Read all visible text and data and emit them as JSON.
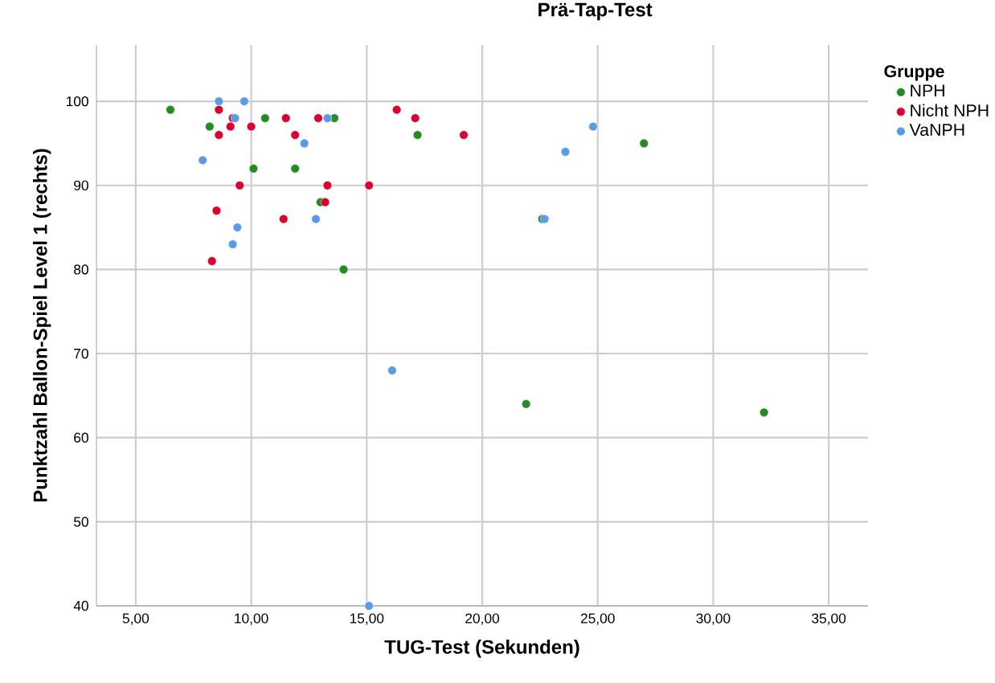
{
  "chart_data": {
    "type": "scatter",
    "title": "Prä-Tap-Test",
    "xlabel": "TUG-Test (Sekunden)",
    "ylabel": "Punktzahl Ballon-Spiel Level 1 (rechts)",
    "legend_title": "Gruppe",
    "xlim": [
      3.3,
      36.7
    ],
    "ylim": [
      40,
      106.7
    ],
    "xticks": [
      {
        "value": 5,
        "label": "5,00"
      },
      {
        "value": 10,
        "label": "10,00"
      },
      {
        "value": 15,
        "label": "15,00"
      },
      {
        "value": 20,
        "label": "20,00"
      },
      {
        "value": 25,
        "label": "25,00"
      },
      {
        "value": 30,
        "label": "30,00"
      },
      {
        "value": 35,
        "label": "35,00"
      }
    ],
    "yticks": [
      40,
      50,
      60,
      70,
      80,
      90,
      100
    ],
    "grid": true,
    "legend": "top right",
    "marker": "circle",
    "series": [
      {
        "name": "NPH",
        "color": "#228b22",
        "x": [
          6.5,
          8.2,
          10.1,
          10.6,
          11.9,
          13.0,
          13.6,
          14.0,
          17.2,
          21.9,
          22.6,
          27.0,
          32.2
        ],
        "values": [
          99,
          97,
          92,
          98,
          92,
          88,
          98,
          80,
          96,
          64,
          86,
          95,
          63
        ]
      },
      {
        "name": "Nicht NPH",
        "color": "#d7002f",
        "x": [
          8.6,
          9.2,
          11.5,
          12.9,
          9.1,
          10.0,
          8.6,
          11.9,
          16.3,
          17.1,
          19.2,
          9.5,
          13.3,
          15.1,
          13.2,
          8.5,
          11.4,
          8.3
        ],
        "values": [
          99,
          98,
          98,
          98,
          97,
          97,
          96,
          96,
          99,
          98,
          96,
          90,
          90,
          90,
          88,
          87,
          86,
          81
        ]
      },
      {
        "name": "VaNPH",
        "color": "#5b9be6",
        "x": [
          8.6,
          9.7,
          9.3,
          13.3,
          12.3,
          7.9,
          12.8,
          9.4,
          9.2,
          24.8,
          23.6,
          22.7,
          16.1,
          15.1
        ],
        "values": [
          100,
          100,
          98,
          98,
          95,
          93,
          86,
          85,
          83,
          97,
          94,
          86,
          68,
          40
        ]
      }
    ]
  }
}
